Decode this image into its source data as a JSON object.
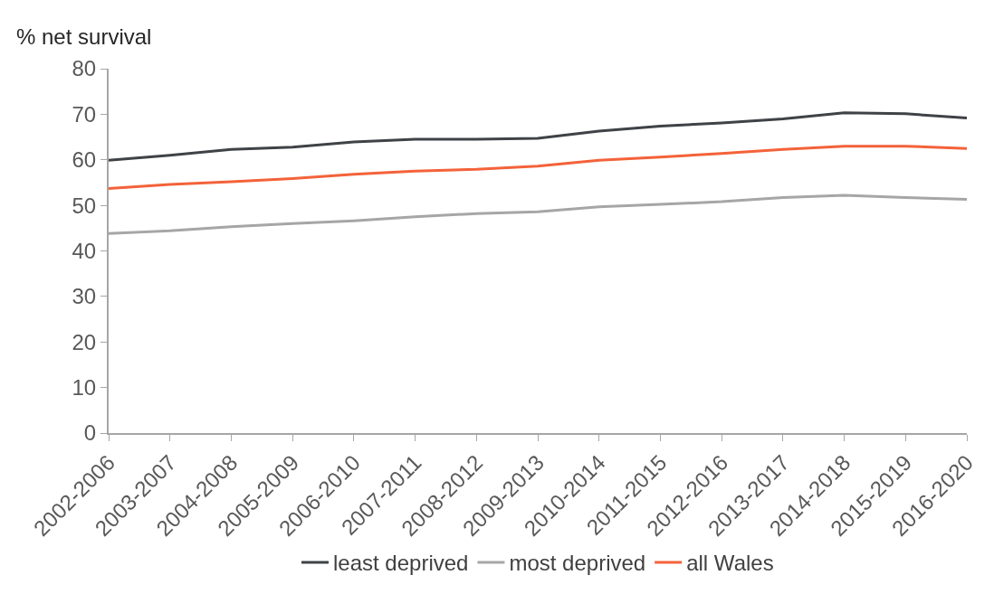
{
  "chart_data": {
    "type": "line",
    "ylabel": "% net survival",
    "categories": [
      "2002-2006",
      "2003-2007",
      "2004-2008",
      "2005-2009",
      "2006-2010",
      "2007-2011",
      "2008-2012",
      "2009-2013",
      "2010-2014",
      "2011-2015",
      "2012-2016",
      "2013-2017",
      "2014-2018",
      "2015-2019",
      "2016-2020"
    ],
    "series": [
      {
        "name": "least deprived",
        "color": "#3f4246",
        "values": [
          59.9,
          61,
          62.3,
          62.8,
          63.9,
          64.5,
          64.5,
          64.7,
          66.3,
          67.4,
          68.1,
          69,
          70.3,
          70.1,
          69.2
        ]
      },
      {
        "name": "most deprived",
        "color": "#a6a6a6",
        "values": [
          43.8,
          44.4,
          45.3,
          46,
          46.6,
          47.5,
          48.2,
          48.6,
          49.7,
          50.2,
          50.8,
          51.7,
          52.2,
          51.7,
          51.3
        ]
      },
      {
        "name": "all Wales",
        "color": "#f4623a",
        "values": [
          53.7,
          54.6,
          55.2,
          55.9,
          56.8,
          57.5,
          57.9,
          58.6,
          59.9,
          60.6,
          61.4,
          62.3,
          63,
          63,
          62.5
        ]
      }
    ],
    "ylim": [
      0,
      80
    ],
    "yticks": [
      0,
      10,
      20,
      30,
      40,
      50,
      60,
      70,
      80
    ],
    "legend": "bottom",
    "marker": "none",
    "line_style": "solid"
  }
}
